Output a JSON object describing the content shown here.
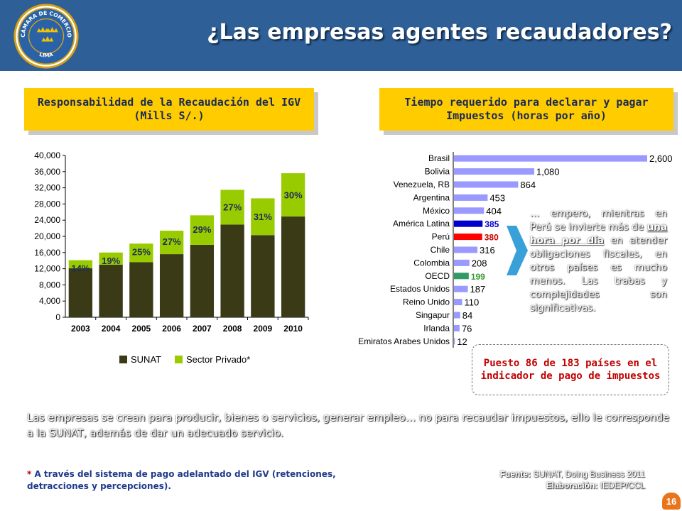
{
  "header": {
    "title": "¿Las empresas agentes recaudadores?",
    "logo_text_top": "CÁMARA DE COMERCIO",
    "logo_text_bottom": "LIMA"
  },
  "left_section": {
    "title": "Responsabilidad de la Recaudación del IGV (Mills S/.)"
  },
  "right_section": {
    "title": "Tiempo requerido para declarar y pagar Impuestos (horas por año)"
  },
  "chart_data": [
    {
      "type": "bar",
      "stacked": true,
      "categories": [
        "2003",
        "2004",
        "2005",
        "2006",
        "2007",
        "2008",
        "2009",
        "2010"
      ],
      "series": [
        {
          "name": "SUNAT",
          "values": [
            12100,
            13000,
            13600,
            15600,
            17900,
            22900,
            20300,
            24900
          ]
        },
        {
          "name": "Sector Privado*",
          "values": [
            2000,
            3000,
            4600,
            5800,
            7300,
            8600,
            9100,
            10700
          ]
        }
      ],
      "data_labels": [
        "14%",
        "19%",
        "25%",
        "27%",
        "29%",
        "27%",
        "31%",
        "30%"
      ],
      "y_ticks": [
        "0",
        "4,000",
        "8,000",
        "12,000",
        "16,000",
        "20,000",
        "24,000",
        "28,000",
        "32,000",
        "36,000",
        "40,000"
      ],
      "ylim": [
        0,
        40000
      ],
      "legend": "bottom",
      "colors": {
        "SUNAT": "#3a3a17",
        "Sector Privado*": "#99cc00"
      }
    },
    {
      "type": "bar",
      "orientation": "horizontal",
      "categories": [
        "Brasil",
        "Bolivia",
        "Venezuela, RB",
        "Argentina",
        "México",
        "América Latina",
        "Perú",
        "Chile",
        "Colombia",
        "OECD",
        "Estados Unidos",
        "Reino Unido",
        "Singapur",
        "Irlanda",
        "Emiratos Arabes Unidos"
      ],
      "values": [
        2600,
        1080,
        864,
        453,
        404,
        385,
        380,
        316,
        208,
        199,
        187,
        110,
        84,
        76,
        12
      ],
      "value_labels": [
        "2,600",
        "1,080",
        "864",
        "453",
        "404",
        "385",
        "380",
        "316",
        "208",
        "199",
        "187",
        "110",
        "84",
        "76",
        "12"
      ],
      "colors": {
        "default": "#9999ff",
        "América Latina": "#0000cc",
        "Perú": "#ff0000",
        "OECD": "#339966"
      },
      "label_colors": {
        "default": "#000000",
        "América Latina": "#0000cc",
        "Perú": "#cc0000",
        "OECD": "#339933"
      }
    }
  ],
  "note": {
    "before": "… empero, mientras en Perú se invierte más de ",
    "highlight": "una hora por día",
    "after": " en atender obligaciones fiscales, en otros países es mucho menos. Las trabas y complejidades son significativas."
  },
  "rank_box": {
    "text": "Puesto 86 de 183 países en el indicador de pago de impuestos"
  },
  "body_text": "Las empresas se crean para producir, bienes o servicios, generar empleo… no para recaudar impuestos, ello le corresponde a la SUNAT, además de dar un adecuado servicio.",
  "footnote": {
    "star": "* ",
    "text": "A través del sistema de pago adelantado del IGV (retenciones, detracciones y percepciones)."
  },
  "source": {
    "label1": "Fuente:",
    "value1": " SUNAT, Doing Business 2011",
    "label2": "Elaboración:",
    "value2": " IEDEP/CCL"
  },
  "page_number": "16"
}
